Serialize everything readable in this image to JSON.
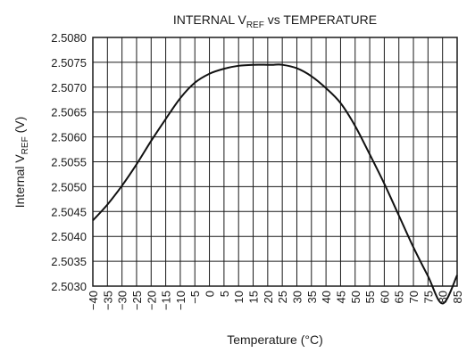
{
  "chart_data": {
    "type": "line",
    "title": {
      "main": "INTERNAL V",
      "sub": "REF",
      "rest": " vs TEMPERATURE"
    },
    "xlabel": "Temperature (°C)",
    "ylabel": {
      "main": "Internal V",
      "sub": "REF",
      "rest": " (V)"
    },
    "xlim": [
      -40,
      85
    ],
    "ylim": [
      2.503,
      2.508
    ],
    "x_ticks": [
      "−40",
      "−35",
      "−30",
      "−25",
      "−20",
      "−15",
      "−10",
      "−5",
      "0",
      "5",
      "10",
      "15",
      "20",
      "25",
      "30",
      "35",
      "40",
      "45",
      "50",
      "55",
      "60",
      "65",
      "70",
      "75",
      "80",
      "85"
    ],
    "y_ticks": [
      "2.5080",
      "2.5075",
      "2.5070",
      "2.5065",
      "2.5060",
      "2.5055",
      "2.5050",
      "2.5045",
      "2.5040",
      "2.5035",
      "2.5030"
    ],
    "x_tick_values": [
      -40,
      -35,
      -30,
      -25,
      -20,
      -15,
      -10,
      -5,
      0,
      5,
      10,
      15,
      20,
      25,
      30,
      35,
      40,
      45,
      50,
      55,
      60,
      65,
      70,
      75,
      80,
      85
    ],
    "y_tick_values": [
      2.508,
      2.5075,
      2.507,
      2.5065,
      2.506,
      2.5055,
      2.505,
      2.5045,
      2.504,
      2.5035,
      2.503
    ],
    "grid": true,
    "series": [
      {
        "x": [
          -40,
          -35,
          -30,
          -25,
          -20,
          -15,
          -10,
          -5,
          0,
          5,
          10,
          15,
          20,
          22,
          25,
          30,
          35,
          40,
          45,
          50,
          55,
          60,
          65,
          70,
          75,
          80,
          85
        ],
        "y": [
          2.50432,
          2.50464,
          2.50502,
          2.50545,
          2.50592,
          2.50636,
          2.50678,
          2.50709,
          2.50727,
          2.50737,
          2.50743,
          2.50745,
          2.50745,
          2.50745,
          2.50745,
          2.50738,
          2.50722,
          2.50698,
          2.50668,
          2.50622,
          2.50565,
          2.50506,
          2.50442,
          2.50378,
          2.5032,
          2.50265,
          2.50322
        ]
      }
    ]
  }
}
